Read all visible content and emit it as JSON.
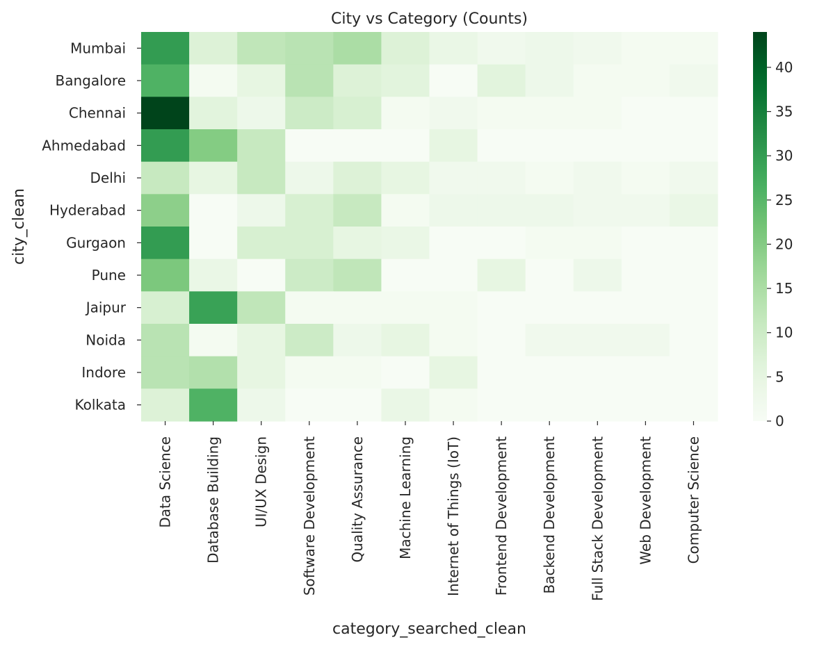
{
  "chart_data": {
    "type": "heatmap",
    "title": "City vs Category (Counts)",
    "xlabel": "category_searched_clean",
    "ylabel": "city_clean",
    "rows": [
      "Mumbai",
      "Bangalore",
      "Chennai",
      "Ahmedabad",
      "Delhi",
      "Hyderabad",
      "Gurgaon",
      "Pune",
      "Jaipur",
      "Noida",
      "Indore",
      "Kolkata"
    ],
    "columns": [
      "Data Science",
      "Database Building",
      "UI/UX Design",
      "Software Development",
      "Quality Assurance",
      "Machine Learning",
      "Internet of Things (IoT)",
      "Frontend Development",
      "Backend Development",
      "Full Stack Development",
      "Web Development",
      "Computer Science"
    ],
    "values": [
      [
        30,
        7,
        12,
        13,
        15,
        7,
        4,
        2,
        3,
        2,
        1,
        1
      ],
      [
        26,
        1,
        5,
        13,
        7,
        6,
        0,
        6,
        3,
        1,
        1,
        2
      ],
      [
        44,
        6,
        3,
        10,
        8,
        1,
        2,
        1,
        1,
        1,
        0,
        0
      ],
      [
        30,
        20,
        11,
        0,
        0,
        0,
        5,
        0,
        0,
        0,
        0,
        0
      ],
      [
        11,
        5,
        11,
        3,
        7,
        5,
        2,
        2,
        1,
        2,
        1,
        2
      ],
      [
        19,
        0,
        3,
        8,
        11,
        1,
        3,
        3,
        3,
        2,
        2,
        4
      ],
      [
        30,
        0,
        8,
        8,
        5,
        4,
        0,
        0,
        1,
        1,
        0,
        0
      ],
      [
        21,
        4,
        0,
        10,
        12,
        0,
        0,
        5,
        0,
        3,
        0,
        0
      ],
      [
        8,
        29,
        12,
        1,
        1,
        1,
        1,
        0,
        0,
        0,
        0,
        0
      ],
      [
        13,
        1,
        5,
        10,
        3,
        5,
        1,
        0,
        2,
        2,
        2,
        0
      ],
      [
        13,
        14,
        5,
        1,
        1,
        0,
        5,
        0,
        0,
        0,
        0,
        0
      ],
      [
        7,
        26,
        3,
        0,
        0,
        4,
        1,
        0,
        0,
        0,
        0,
        0
      ]
    ],
    "vmin": 0,
    "vmax": 44,
    "colormap": "Greens",
    "colorbar_ticks": [
      0,
      5,
      10,
      15,
      20,
      25,
      30,
      35,
      40
    ],
    "grid": false,
    "colorbar": "right"
  }
}
